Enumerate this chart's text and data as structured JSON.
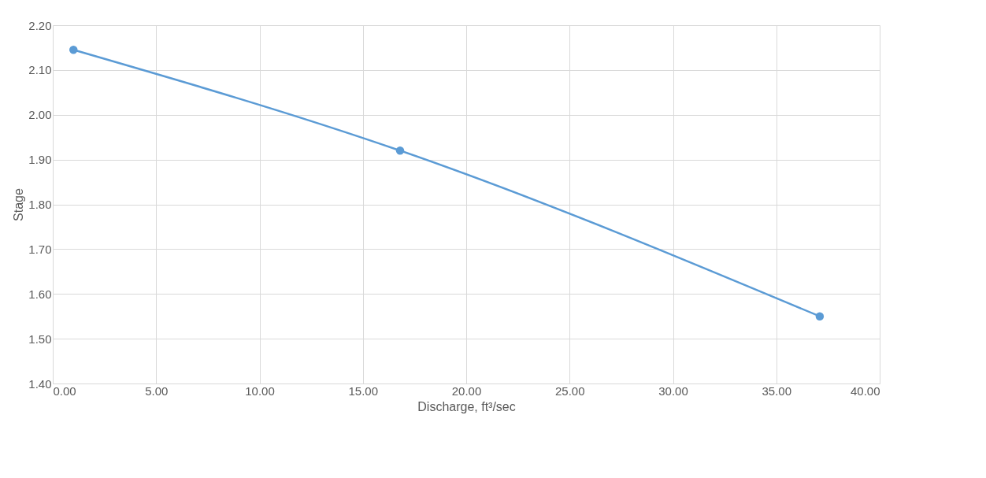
{
  "chart_data": {
    "type": "line",
    "xlabel": "Discharge, ft³/sec",
    "ylabel": "Stage",
    "x": [
      1.0,
      16.8,
      37.1
    ],
    "series": [
      {
        "color": "#5b9bd5",
        "values": [
          2.145,
          1.92,
          1.55
        ]
      }
    ],
    "xlim": [
      0,
      40
    ],
    "ylim": [
      1.4,
      2.2
    ],
    "xticks": [
      {
        "value": 0,
        "label": "0.00"
      },
      {
        "value": 5,
        "label": "5.00"
      },
      {
        "value": 10,
        "label": "10.00"
      },
      {
        "value": 15,
        "label": "15.00"
      },
      {
        "value": 20,
        "label": "20.00"
      },
      {
        "value": 25,
        "label": "25.00"
      },
      {
        "value": 30,
        "label": "30.00"
      },
      {
        "value": 35,
        "label": "35.00"
      },
      {
        "value": 40,
        "label": "40.00"
      }
    ],
    "yticks": [
      {
        "value": 1.4,
        "label": "1.40"
      },
      {
        "value": 1.5,
        "label": "1.50"
      },
      {
        "value": 1.6,
        "label": "1.60"
      },
      {
        "value": 1.7,
        "label": "1.70"
      },
      {
        "value": 1.8,
        "label": "1.80"
      },
      {
        "value": 1.9,
        "label": "1.90"
      },
      {
        "value": 2.0,
        "label": "2.00"
      },
      {
        "value": 2.1,
        "label": "2.10"
      },
      {
        "value": 2.2,
        "label": "2.20"
      }
    ],
    "grid": true,
    "marker": "circle",
    "line_style": "solid"
  }
}
